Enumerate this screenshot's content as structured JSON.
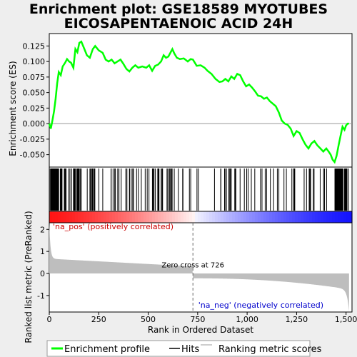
{
  "chart_data": {
    "type": "line",
    "title_line1": "Enrichment plot: GSE18589 MYOTUBES",
    "title_line2": "EICOSAPENTAENOIC ACID 24H",
    "xlabel": "Rank in Ordered Dataset",
    "ylabel_es": "Enrichment score (ES)",
    "ylabel_rank": "Ranked list metric (PreRanked)",
    "xlim": [
      0,
      1530
    ],
    "es_ylim": [
      -0.07,
      0.145
    ],
    "rank_ylim": [
      -1.75,
      2.3
    ],
    "x_ticks": [
      0,
      250,
      500,
      750,
      1000,
      1250,
      1500
    ],
    "x_tick_labels": [
      "0",
      "250",
      "500",
      "750",
      "1,000",
      "1,250",
      "1,500"
    ],
    "es_ticks": [
      -0.05,
      -0.025,
      0.0,
      0.025,
      0.05,
      0.075,
      0.1,
      0.125
    ],
    "es_tick_labels": [
      "-0.050",
      "-0.025",
      "0.000",
      "0.025",
      "0.050",
      "0.075",
      "0.100",
      "0.125"
    ],
    "rank_ticks": [
      -1,
      0,
      1,
      2
    ],
    "rank_tick_labels": [
      "-1",
      "0",
      "1",
      "2"
    ],
    "pos_label": "'na_pos' (positively correlated)",
    "neg_label": "'na_neg' (negatively correlated)",
    "zero_cross_label": "Zero cross at 726",
    "zero_cross": 726,
    "n_genes": 1515,
    "legend": [
      "Enrichment profile",
      "Hits",
      "Ranking metric scores"
    ],
    "colors": {
      "es": "#00ff00",
      "hits": "#000000",
      "metric": "#bebebe",
      "pos": "#ff0000",
      "neg": "#0000ff"
    },
    "es_curve": [
      [
        0,
        0.0
      ],
      [
        8,
        -0.008
      ],
      [
        16,
        0.005
      ],
      [
        24,
        0.02
      ],
      [
        32,
        0.04
      ],
      [
        40,
        0.065
      ],
      [
        48,
        0.083
      ],
      [
        58,
        0.078
      ],
      [
        68,
        0.092
      ],
      [
        80,
        0.098
      ],
      [
        90,
        0.104
      ],
      [
        100,
        0.1
      ],
      [
        110,
        0.098
      ],
      [
        122,
        0.09
      ],
      [
        132,
        0.12
      ],
      [
        142,
        0.115
      ],
      [
        152,
        0.13
      ],
      [
        162,
        0.132
      ],
      [
        175,
        0.122
      ],
      [
        190,
        0.11
      ],
      [
        205,
        0.106
      ],
      [
        220,
        0.12
      ],
      [
        232,
        0.125
      ],
      [
        250,
        0.118
      ],
      [
        270,
        0.114
      ],
      [
        285,
        0.103
      ],
      [
        300,
        0.1
      ],
      [
        315,
        0.103
      ],
      [
        330,
        0.097
      ],
      [
        345,
        0.1
      ],
      [
        360,
        0.103
      ],
      [
        375,
        0.096
      ],
      [
        390,
        0.088
      ],
      [
        405,
        0.084
      ],
      [
        420,
        0.09
      ],
      [
        435,
        0.094
      ],
      [
        450,
        0.09
      ],
      [
        470,
        0.092
      ],
      [
        490,
        0.09
      ],
      [
        505,
        0.094
      ],
      [
        520,
        0.085
      ],
      [
        535,
        0.093
      ],
      [
        550,
        0.095
      ],
      [
        565,
        0.1
      ],
      [
        578,
        0.11
      ],
      [
        590,
        0.106
      ],
      [
        602,
        0.108
      ],
      [
        612,
        0.114
      ],
      [
        622,
        0.12
      ],
      [
        632,
        0.113
      ],
      [
        645,
        0.106
      ],
      [
        660,
        0.104
      ],
      [
        680,
        0.105
      ],
      [
        700,
        0.1
      ],
      [
        715,
        0.104
      ],
      [
        726,
        0.103
      ],
      [
        745,
        0.093
      ],
      [
        765,
        0.094
      ],
      [
        785,
        0.09
      ],
      [
        800,
        0.085
      ],
      [
        820,
        0.08
      ],
      [
        840,
        0.072
      ],
      [
        860,
        0.067
      ],
      [
        875,
        0.068
      ],
      [
        890,
        0.072
      ],
      [
        905,
        0.068
      ],
      [
        920,
        0.076
      ],
      [
        935,
        0.072
      ],
      [
        950,
        0.08
      ],
      [
        965,
        0.078
      ],
      [
        980,
        0.068
      ],
      [
        995,
        0.06
      ],
      [
        1010,
        0.063
      ],
      [
        1025,
        0.058
      ],
      [
        1040,
        0.052
      ],
      [
        1055,
        0.045
      ],
      [
        1070,
        0.044
      ],
      [
        1085,
        0.04
      ],
      [
        1100,
        0.042
      ],
      [
        1115,
        0.036
      ],
      [
        1130,
        0.032
      ],
      [
        1145,
        0.028
      ],
      [
        1160,
        0.018
      ],
      [
        1175,
        0.005
      ],
      [
        1190,
        0.0
      ],
      [
        1205,
        -0.002
      ],
      [
        1220,
        -0.008
      ],
      [
        1235,
        -0.02
      ],
      [
        1250,
        -0.012
      ],
      [
        1265,
        -0.015
      ],
      [
        1280,
        -0.025
      ],
      [
        1295,
        -0.034
      ],
      [
        1310,
        -0.04
      ],
      [
        1325,
        -0.032
      ],
      [
        1340,
        -0.028
      ],
      [
        1355,
        -0.035
      ],
      [
        1370,
        -0.04
      ],
      [
        1385,
        -0.045
      ],
      [
        1400,
        -0.04
      ],
      [
        1412,
        -0.045
      ],
      [
        1422,
        -0.05
      ],
      [
        1432,
        -0.058
      ],
      [
        1442,
        -0.062
      ],
      [
        1452,
        -0.052
      ],
      [
        1462,
        -0.035
      ],
      [
        1472,
        -0.02
      ],
      [
        1482,
        -0.005
      ],
      [
        1492,
        -0.01
      ],
      [
        1500,
        -0.003
      ],
      [
        1508,
        0.0
      ],
      [
        1515,
        0.0
      ]
    ]
  }
}
